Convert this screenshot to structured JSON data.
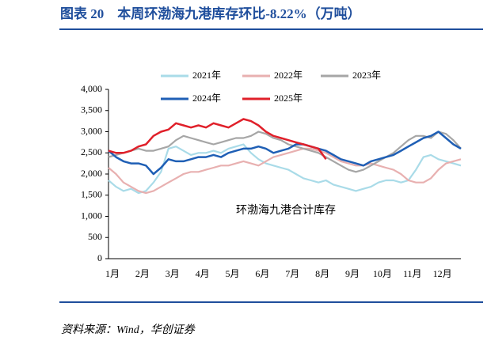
{
  "chart_data": {
    "type": "line",
    "title": "图表 20　本周环渤海九港库存环比-8.22%（万吨）",
    "annotation": "环渤海九港合计库存",
    "source": "资料来源：Wind，华创证券",
    "categories": [
      "1月",
      null,
      null,
      null,
      "2月",
      null,
      null,
      null,
      "3月",
      null,
      null,
      null,
      "4月",
      null,
      null,
      null,
      "5月",
      null,
      null,
      null,
      "6月",
      null,
      null,
      null,
      "7月",
      null,
      null,
      null,
      "8月",
      null,
      null,
      null,
      "9月",
      null,
      null,
      null,
      "10月",
      null,
      null,
      null,
      "11月",
      null,
      null,
      null,
      "12月",
      null,
      null,
      null
    ],
    "ylim": [
      0,
      4000
    ],
    "yticks": [
      0,
      500,
      {
        "value": 1000,
        "label": "1,000"
      },
      {
        "value": 1500,
        "label": "1,500"
      },
      {
        "value": 2000,
        "label": "2,000"
      },
      {
        "value": 2500,
        "label": "2,500"
      },
      {
        "value": 3000,
        "label": "3,000"
      },
      {
        "value": 3500,
        "label": "3,500"
      },
      {
        "value": 4000,
        "label": "4,000"
      }
    ],
    "grid": false,
    "series": [
      {
        "name": "2021年",
        "color": "#a9dbe8",
        "values": [
          1850,
          1700,
          1600,
          1650,
          1550,
          1600,
          1800,
          2050,
          2600,
          2650,
          2550,
          2450,
          2500,
          2500,
          2550,
          2500,
          2600,
          2650,
          2700,
          2500,
          2350,
          2250,
          2200,
          2150,
          2100,
          2000,
          1900,
          1850,
          1800,
          1850,
          1750,
          1700,
          1650,
          1600,
          1650,
          1700,
          1800,
          1850,
          1850,
          1800,
          1850,
          2100,
          2400,
          2450,
          2350,
          2300,
          2250,
          2200
        ]
      },
      {
        "name": "2022年",
        "color": "#e8b0b0",
        "values": [
          2150,
          2000,
          1800,
          1700,
          1600,
          1550,
          1600,
          1700,
          1800,
          1900,
          2000,
          2050,
          2050,
          2100,
          2150,
          2200,
          2200,
          2250,
          2300,
          2250,
          2200,
          2300,
          2400,
          2450,
          2500,
          2550,
          2600,
          2600,
          2550,
          2500,
          2400,
          2300,
          2250,
          2200,
          2200,
          2250,
          2200,
          2150,
          2100,
          2000,
          1850,
          1800,
          1800,
          1900,
          2100,
          2250,
          2300,
          2350
        ]
      },
      {
        "name": "2023年",
        "color": "#a6a6a6",
        "values": [
          2400,
          2450,
          2500,
          2550,
          2600,
          2550,
          2550,
          2600,
          2650,
          2800,
          2900,
          2850,
          2800,
          2750,
          2700,
          2750,
          2800,
          2850,
          2850,
          2900,
          3000,
          2950,
          2850,
          2800,
          2700,
          2650,
          2600,
          2550,
          2500,
          2400,
          2300,
          2200,
          2100,
          2050,
          2100,
          2200,
          2300,
          2400,
          2500,
          2650,
          2800,
          2900,
          2900,
          2850,
          3000,
          2950,
          2800,
          2600
        ]
      },
      {
        "name": "2024年",
        "color": "#1f5fb5",
        "values": [
          2550,
          2400,
          2300,
          2250,
          2250,
          2200,
          2000,
          2150,
          2350,
          2300,
          2300,
          2350,
          2400,
          2400,
          2450,
          2400,
          2500,
          2550,
          2600,
          2600,
          2650,
          2600,
          2500,
          2550,
          2600,
          2700,
          2700,
          2650,
          2600,
          2550,
          2450,
          2350,
          2300,
          2250,
          2200,
          2300,
          2350,
          2400,
          2450,
          2550,
          2650,
          2750,
          2850,
          2900,
          3000,
          2850,
          2700,
          2600
        ]
      },
      {
        "name": "2025年",
        "color": "#e0202a",
        "values": [
          2550,
          2500,
          2500,
          2550,
          2650,
          2700,
          2900,
          3000,
          3050,
          3200,
          3150,
          3100,
          3150,
          3100,
          3200,
          3150,
          3100,
          3200,
          3300,
          3250,
          3150,
          3000,
          2900,
          2850,
          2800,
          2750,
          2700,
          2650,
          2600,
          2350,
          null,
          null,
          null,
          null,
          null,
          null,
          null,
          null,
          null,
          null,
          null,
          null,
          null,
          null,
          null,
          null,
          null,
          null
        ]
      }
    ]
  }
}
